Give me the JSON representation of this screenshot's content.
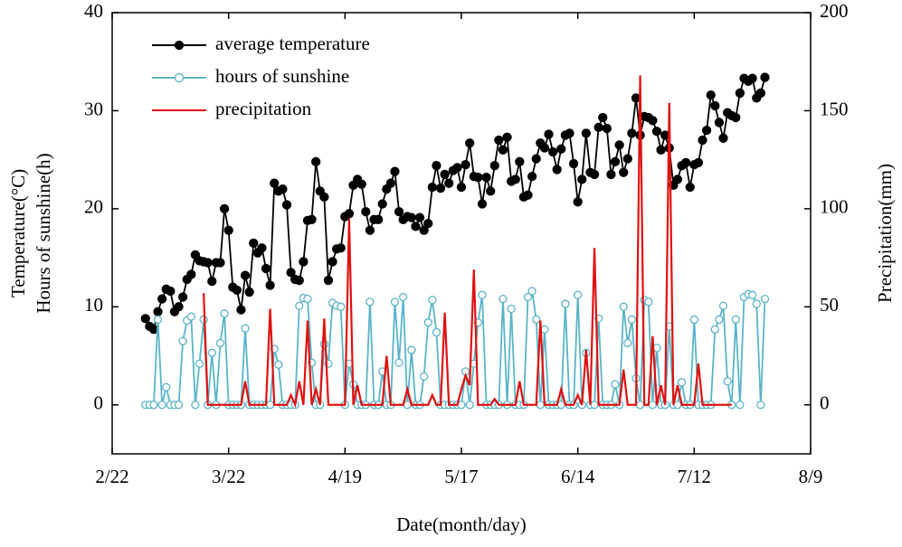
{
  "chart_data": {
    "type": "line",
    "xlabel": "Date(month/day)",
    "ylabel": [
      "Temperature(°C)",
      "Hours of sunshine(h)"
    ],
    "y2label": "Precipitation(mm)",
    "xlim": [
      0,
      168
    ],
    "xticks": [
      {
        "value": 0,
        "label": "2/22"
      },
      {
        "value": 28,
        "label": "3/22"
      },
      {
        "value": 56,
        "label": "4/19"
      },
      {
        "value": 84,
        "label": "5/17"
      },
      {
        "value": 112,
        "label": "6/14"
      },
      {
        "value": 140,
        "label": "7/12"
      },
      {
        "value": 168,
        "label": "8/9"
      }
    ],
    "ylim": [
      -5,
      40
    ],
    "yticks": [
      0,
      10,
      20,
      30,
      40
    ],
    "y2lim": [
      -25,
      200
    ],
    "y2ticks": [
      0,
      50,
      100,
      150,
      200
    ],
    "legend": "upper left",
    "x": [
      8,
      9,
      10,
      11,
      12,
      13,
      14,
      15,
      16,
      17,
      18,
      19,
      20,
      21,
      22,
      23,
      24,
      25,
      26,
      27,
      28,
      29,
      30,
      31,
      32,
      33,
      34,
      35,
      36,
      37,
      38,
      39,
      40,
      41,
      42,
      43,
      44,
      45,
      46,
      47,
      48,
      49,
      50,
      51,
      52,
      53,
      54,
      55,
      56,
      57,
      58,
      59,
      60,
      61,
      62,
      63,
      64,
      65,
      66,
      67,
      68,
      69,
      70,
      71,
      72,
      73,
      74,
      75,
      76,
      77,
      78,
      79,
      80,
      81,
      82,
      83,
      84,
      85,
      86,
      87,
      88,
      89,
      90,
      91,
      92,
      93,
      94,
      95,
      96,
      97,
      98,
      99,
      100,
      101,
      102,
      103,
      104,
      105,
      106,
      107,
      108,
      109,
      110,
      111,
      112,
      113,
      114,
      115,
      116,
      117,
      118,
      119,
      120,
      121,
      122,
      123,
      124,
      125,
      126,
      127,
      128,
      129,
      130,
      131,
      132,
      133,
      134,
      135,
      136,
      137,
      138,
      139,
      140,
      141,
      142,
      143,
      144,
      145,
      146,
      147,
      148,
      149,
      150,
      151,
      152,
      153,
      154,
      155,
      156,
      157
    ],
    "series": [
      {
        "name": "average temperature",
        "color": "#000000",
        "marker": "filled",
        "values": [
          8.8,
          8.0,
          7.7,
          9.5,
          10.8,
          11.8,
          11.6,
          9.5,
          10,
          11,
          12.8,
          13.3,
          15.3,
          14.7,
          14.6,
          14.5,
          12.6,
          14.5,
          14.5,
          20,
          17.8,
          12,
          11.7,
          9.7,
          13.2,
          11.5,
          16.5,
          15.5,
          16,
          13.9,
          12.2,
          22.6,
          21.8,
          22,
          20.4,
          13.5,
          12.8,
          12.7,
          14.6,
          18.8,
          18.9,
          24.8,
          21.8,
          21.2,
          12.7,
          14.6,
          15.9,
          16,
          19.2,
          19.5,
          22.4,
          23,
          22.5,
          19.7,
          17.8,
          18.9,
          18.9,
          20.5,
          22,
          22.6,
          23.8,
          19.7,
          18.9,
          19.2,
          19.1,
          18.2,
          19.1,
          17.8,
          18.5,
          22.2,
          24.4,
          22.1,
          23.5,
          22.6,
          23.9,
          24.2,
          22.2,
          24.5,
          26.7,
          23.3,
          23.2,
          20.5,
          23.2,
          21.8,
          24.4,
          27,
          26,
          27.3,
          22.8,
          23,
          24.8,
          21.2,
          21.4,
          23.3,
          25.1,
          26.7,
          26.2,
          27.6,
          25.8,
          24,
          26.1,
          27.5,
          27.7,
          24.6,
          20.7,
          23,
          27.7,
          23.7,
          23.5,
          28.3,
          29.3,
          28.2,
          23.5,
          24.8,
          26.5,
          23.7,
          25.1,
          27.7,
          31.3,
          27.5,
          29.4,
          29.3,
          29,
          27.9,
          26,
          27.5,
          26.2,
          22.4,
          23,
          24.4,
          24.7,
          22.2,
          24.5,
          24.7,
          27,
          28,
          31.6,
          30.5,
          28.8,
          27.2,
          29.8,
          29.5,
          29.3,
          31.8,
          33.3,
          33,
          33.3,
          31.3,
          31.8,
          33.4
        ]
      },
      {
        "name": "hours of sunshine",
        "color": "#5ab4c8",
        "marker": "open",
        "values": [
          0,
          0,
          0,
          8.7,
          0,
          1.8,
          0,
          0,
          0,
          6.5,
          8.6,
          9,
          0,
          4.2,
          8.7,
          0,
          5.3,
          0,
          6.3,
          9.3,
          0,
          0,
          0,
          0,
          7.8,
          0,
          0,
          0,
          0,
          0,
          0,
          5.7,
          4.1,
          0,
          0,
          0,
          0,
          10.1,
          10.9,
          10.8,
          4.3,
          0,
          0,
          6.2,
          4.2,
          10.4,
          10.1,
          10,
          0,
          4.2,
          2.1,
          0,
          0,
          0,
          10.5,
          0,
          0,
          3.4,
          0,
          0,
          10.5,
          4.3,
          11,
          0,
          5.6,
          0,
          0,
          2.9,
          8.4,
          10.7,
          7.4,
          0,
          0,
          0,
          0,
          0,
          0,
          3.4,
          0,
          4.2,
          8.4,
          11.2,
          0,
          0,
          0,
          0,
          10.8,
          0,
          9.8,
          0,
          0,
          0,
          11,
          11.6,
          8.7,
          0,
          7.7,
          0,
          0,
          0,
          0,
          10.3,
          0,
          0,
          11.2,
          0,
          5.3,
          0,
          0,
          8.8,
          0,
          0,
          0,
          2.1,
          0,
          10,
          6.3,
          8.7,
          2.7,
          0,
          10.7,
          10.5,
          0,
          5.8,
          0,
          0,
          8,
          0,
          0,
          2.3,
          0,
          0,
          8.7,
          0,
          0,
          0,
          0,
          7.7,
          8.7,
          10.1,
          2.4,
          0,
          8.7,
          0,
          11,
          11.3,
          11.2,
          10.3,
          0,
          10.8
        ]
      },
      {
        "name": "precipitation",
        "color": "#e01010",
        "marker": "none",
        "axis": "y2",
        "values": [
          null,
          null,
          null,
          null,
          null,
          null,
          null,
          null,
          null,
          null,
          null,
          null,
          null,
          null,
          57,
          0,
          0,
          0,
          0,
          0,
          0,
          0,
          0,
          0,
          12,
          0,
          0,
          0,
          0,
          0,
          49,
          0,
          0,
          0,
          0,
          5,
          0,
          12,
          0,
          43,
          0,
          8,
          0,
          44,
          0,
          0,
          0,
          0,
          0,
          95,
          0,
          10,
          0,
          0,
          0,
          0,
          0,
          0,
          25,
          0,
          0,
          0,
          0,
          8,
          0,
          0,
          0,
          0,
          0,
          5,
          0,
          0,
          47,
          0,
          0,
          0,
          8,
          15,
          10,
          69,
          0,
          0,
          0,
          0,
          3,
          0,
          0,
          0,
          0,
          0,
          12,
          0,
          0,
          0,
          0,
          43,
          0,
          0,
          0,
          0,
          8,
          0,
          0,
          0,
          5,
          0,
          28,
          0,
          80,
          0,
          0,
          0,
          0,
          0,
          0,
          18,
          0,
          0,
          0,
          168,
          0,
          0,
          35,
          0,
          10,
          0,
          154,
          0,
          10,
          0,
          0,
          0,
          0,
          21,
          0,
          0,
          0,
          0,
          0,
          0,
          0,
          0,
          null,
          null,
          null,
          null,
          null,
          null,
          null,
          null
        ]
      }
    ]
  }
}
